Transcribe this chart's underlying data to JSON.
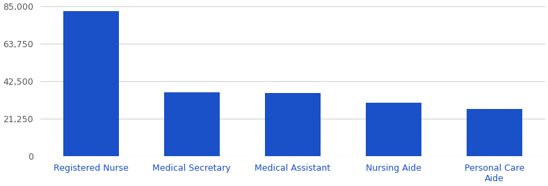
{
  "categories": [
    "Registered Nurse",
    "Medical Secretary",
    "Medical Assistant",
    "Nursing Aide",
    "Personal Care\nAide"
  ],
  "values": [
    82500,
    36500,
    36000,
    30500,
    27000
  ],
  "bar_color": "#1a50c8",
  "ylim": [
    0,
    85000
  ],
  "yticks": [
    0,
    21250,
    42500,
    63750,
    85000
  ],
  "ytick_labels": [
    "0",
    "21,250",
    "42,500",
    "63,750",
    "85,000"
  ],
  "background_color": "#ffffff",
  "grid_color": "#d0d0d0",
  "bar_width": 0.55,
  "xlabel_color": "#1a50c8",
  "ylabel_color": "#555555",
  "tick_fontsize": 9
}
